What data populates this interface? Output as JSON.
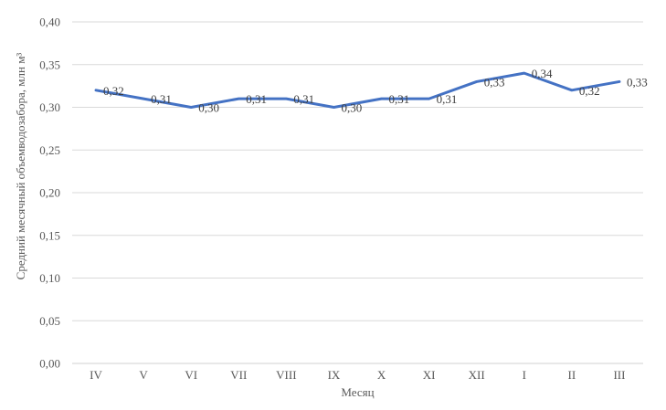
{
  "chart_data": {
    "type": "line",
    "title": "",
    "categories": [
      "IV",
      "V",
      "VI",
      "VII",
      "VIII",
      "IX",
      "X",
      "XI",
      "XII",
      "I",
      "II",
      "III"
    ],
    "values": [
      0.32,
      0.31,
      0.3,
      0.31,
      0.31,
      0.3,
      0.31,
      0.31,
      0.33,
      0.34,
      0.32,
      0.33
    ],
    "point_labels": [
      "0,32",
      "0,31",
      "0,30",
      "0,31",
      "0,31",
      "0,30",
      "0,31",
      "0,31",
      "0,33",
      "0,34",
      "0,32",
      "0,33"
    ],
    "xlabel": "Месяц",
    "ylabel": "Средний месячный объемводозабора, млн м³",
    "ylim": [
      0,
      0.4
    ],
    "ytick_step": 0.05,
    "ytick_labels": [
      "0,00",
      "0,05",
      "0,10",
      "0,15",
      "0,20",
      "0,25",
      "0,30",
      "0,35",
      "0,40"
    ],
    "grid": true,
    "legend": "none",
    "colors": {
      "line": "#4472C4",
      "grid": "#D9D9D9",
      "axis_line": "#D0D0D0",
      "axis_text": "#595959",
      "data_label": "#404040",
      "background": "#FFFFFF"
    }
  }
}
